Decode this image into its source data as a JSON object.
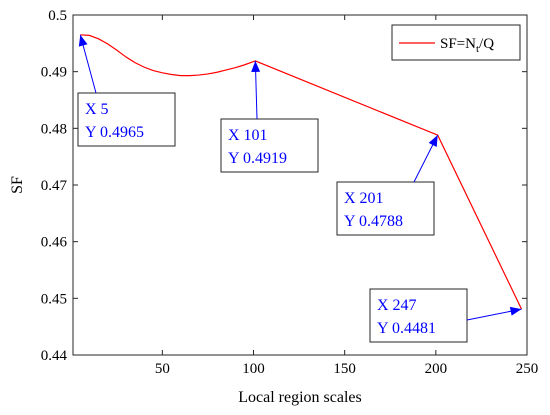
{
  "chart_data": {
    "type": "line",
    "xlabel": "Local region scales",
    "ylabel": "SF",
    "xlim": [
      1,
      250
    ],
    "ylim": [
      0.44,
      0.5
    ],
    "xticks": [
      50,
      100,
      150,
      200,
      250
    ],
    "yticks": [
      0.44,
      0.45,
      0.46,
      0.47,
      0.48,
      0.49,
      0.5
    ],
    "xtick_labels": [
      "50",
      "100",
      "150",
      "200",
      "250"
    ],
    "ytick_labels": [
      "0.44",
      "0.45",
      "0.46",
      "0.47",
      "0.48",
      "0.49",
      "0.5"
    ],
    "grid": false,
    "legend_position": "top-right",
    "legend": {
      "main": "SF=N",
      "sub": "t",
      "tail": "/Q"
    },
    "series": [
      {
        "name": "SF=Nt/Q",
        "color": "#ff0000",
        "x": [
          5,
          10,
          15,
          20,
          25,
          30,
          35,
          40,
          45,
          50,
          55,
          60,
          65,
          70,
          75,
          80,
          85,
          90,
          95,
          101,
          201,
          247
        ],
        "y": [
          0.4965,
          0.4964,
          0.4958,
          0.4949,
          0.4938,
          0.4926,
          0.4916,
          0.4908,
          0.4902,
          0.4898,
          0.4895,
          0.4893,
          0.4893,
          0.4894,
          0.4896,
          0.4899,
          0.4903,
          0.4907,
          0.4912,
          0.4919,
          0.4788,
          0.4481
        ]
      }
    ],
    "annotations": [
      {
        "x": 5,
        "y": 0.4965,
        "xtext": "X 5",
        "ytext": "Y 0.4965"
      },
      {
        "x": 101,
        "y": 0.4919,
        "xtext": "X 101",
        "ytext": "Y 0.4919"
      },
      {
        "x": 201,
        "y": 0.4788,
        "xtext": "X 201",
        "ytext": "Y 0.4788"
      },
      {
        "x": 247,
        "y": 0.4481,
        "xtext": "X 247",
        "ytext": "Y 0.4481"
      }
    ],
    "colors": {
      "line": "#ff0000",
      "annotation": "#0000ff"
    }
  }
}
